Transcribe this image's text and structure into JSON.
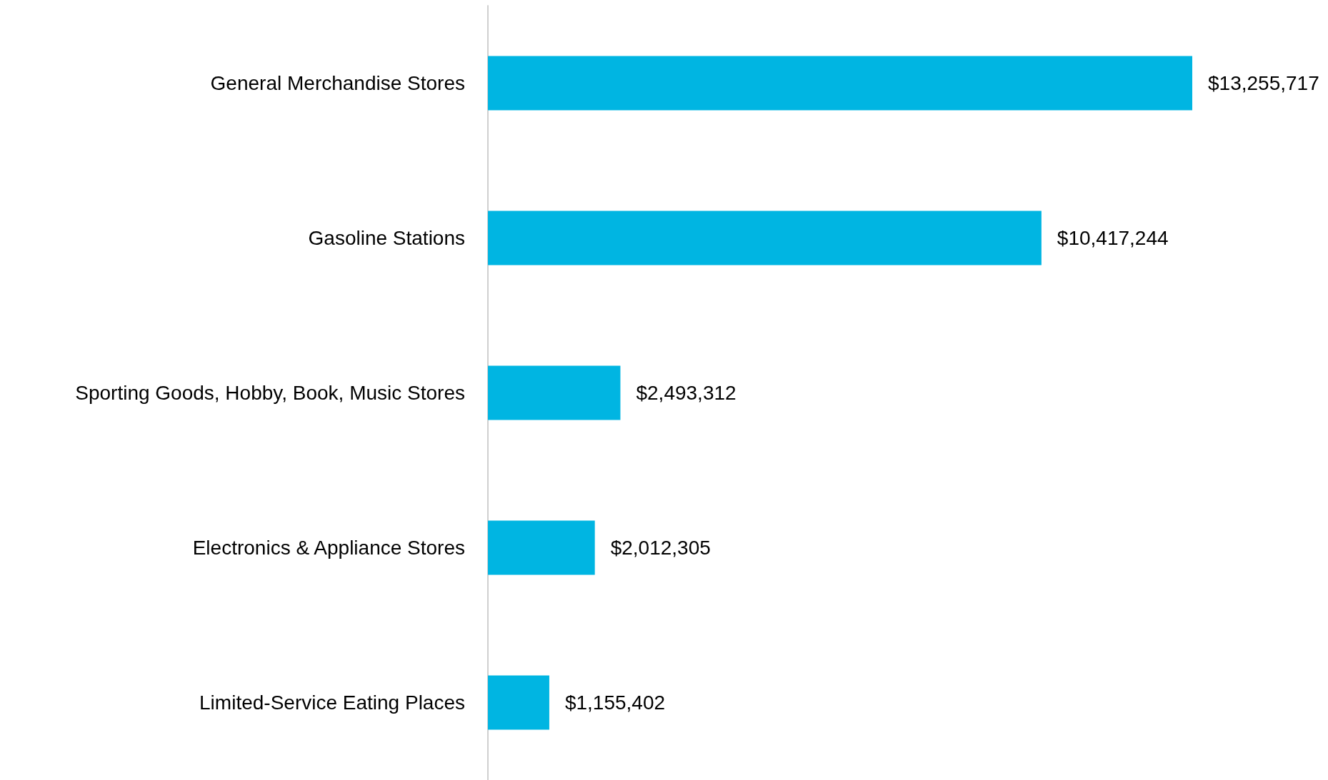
{
  "chart_data": {
    "type": "bar",
    "orientation": "horizontal",
    "categories": [
      "General Merchandise Stores",
      "Gasoline Stations",
      "Sporting Goods, Hobby, Book, Music Stores",
      "Electronics & Appliance Stores",
      "Limited-Service Eating Places"
    ],
    "values": [
      13255717,
      10417244,
      2493312,
      2012305,
      1155402
    ],
    "value_labels": [
      "$13,255,717",
      "$10,417,244",
      "$2,493,312",
      "$2,012,305",
      "$1,155,402"
    ],
    "color": "#00b5e2"
  }
}
